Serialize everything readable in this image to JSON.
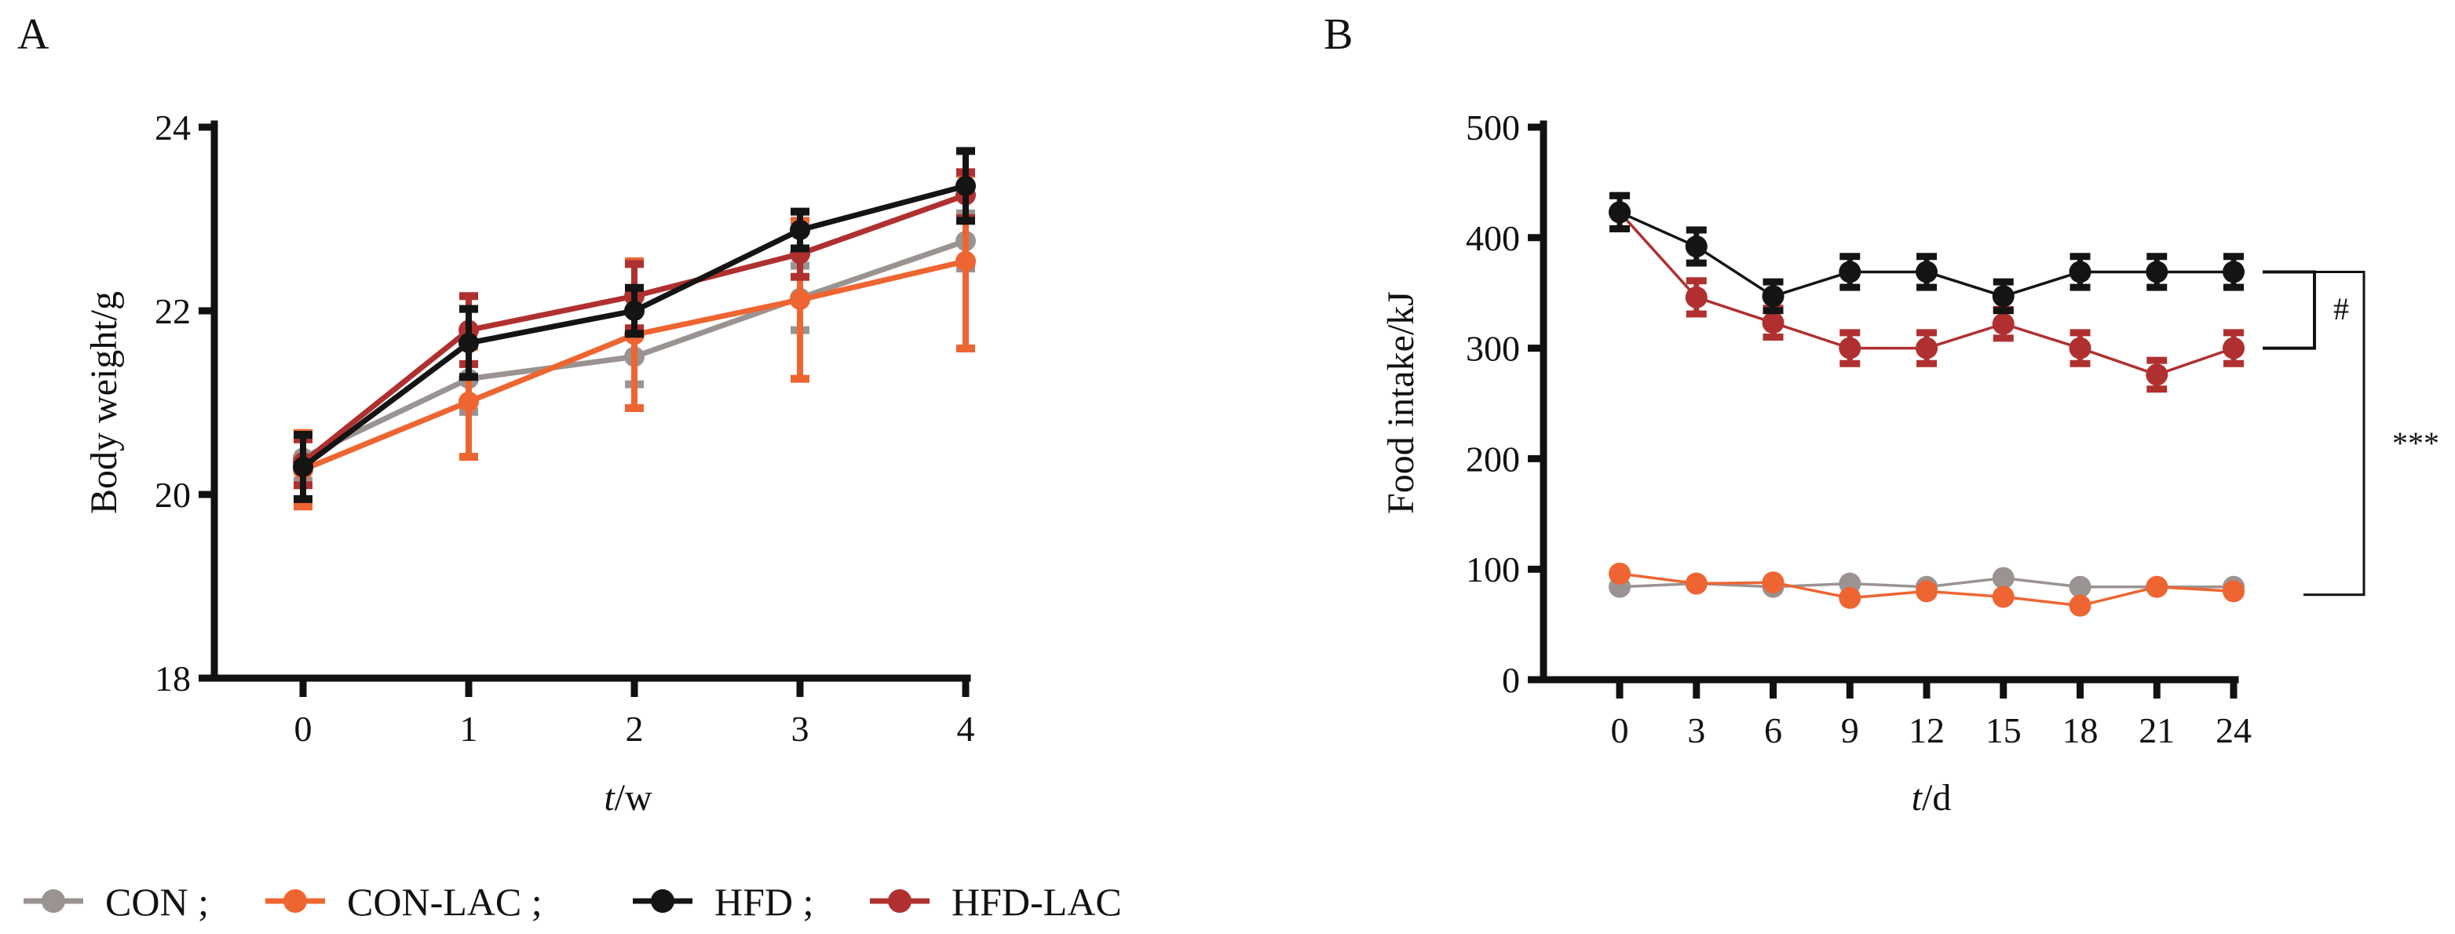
{
  "colors": {
    "CON": "#9a9391",
    "CON-LAC": "#ee6531",
    "HFD": "#141414",
    "HFD-LAC": "#b03030",
    "axis": "#111111"
  },
  "legend": {
    "items": [
      {
        "name": "CON",
        "label": "CON ;"
      },
      {
        "name": "CON-LAC",
        "label": "CON-LAC ;"
      },
      {
        "name": "HFD",
        "label": "HFD ;"
      },
      {
        "name": "HFD-LAC",
        "label": "HFD-LAC"
      }
    ],
    "placement": "bottom-left"
  },
  "chart_data": [
    {
      "panel": "A",
      "type": "line",
      "title": "",
      "xlabel_italic": "t",
      "xlabel_rest": "/w",
      "ylabel": "Body weight/g",
      "x": [
        0,
        1,
        2,
        3,
        4
      ],
      "xticks": [
        "0",
        "1",
        "2",
        "3",
        "4"
      ],
      "ylim": [
        18,
        24
      ],
      "yticks": [
        "18",
        "20",
        "22",
        "24"
      ],
      "ytick_values": [
        18,
        20,
        22,
        24
      ],
      "grid": false,
      "series": [
        {
          "name": "CON",
          "values": [
            20.4,
            21.26,
            21.5,
            22.14,
            22.76
          ],
          "errors": [
            0.25,
            0.36,
            0.3,
            0.35,
            0.3
          ]
        },
        {
          "name": "CON-LAC",
          "values": [
            20.27,
            21.01,
            21.74,
            22.12,
            22.54
          ],
          "errors": [
            0.4,
            0.6,
            0.8,
            0.86,
            0.95
          ]
        },
        {
          "name": "HFD",
          "values": [
            20.3,
            21.65,
            22.0,
            22.88,
            23.36
          ],
          "errors": [
            0.35,
            0.37,
            0.25,
            0.2,
            0.38
          ]
        },
        {
          "name": "HFD-LAC",
          "values": [
            20.35,
            21.79,
            22.16,
            22.62,
            23.26
          ],
          "errors": [
            0.25,
            0.37,
            0.35,
            0.25,
            0.25
          ]
        }
      ]
    },
    {
      "panel": "B",
      "type": "line",
      "title": "",
      "xlabel_italic": "t",
      "xlabel_rest": "/d",
      "ylabel": "Food intake/kJ",
      "x": [
        0,
        3,
        6,
        9,
        12,
        15,
        18,
        21,
        24
      ],
      "xticks": [
        "0",
        "3",
        "6",
        "9",
        "12",
        "15",
        "18",
        "21",
        "24"
      ],
      "ylim": [
        0,
        500
      ],
      "yticks": [
        "0",
        "100",
        "200",
        "300",
        "400",
        "500"
      ],
      "ytick_values": [
        0,
        100,
        200,
        300,
        400,
        500
      ],
      "grid": false,
      "series": [
        {
          "name": "CON",
          "values": [
            84,
            87,
            84,
            87,
            84,
            92,
            84,
            84,
            84
          ],
          "errors": [
            0,
            0,
            0,
            0,
            0,
            0,
            0,
            0,
            0
          ]
        },
        {
          "name": "CON-LAC",
          "values": [
            96,
            87,
            88,
            74,
            80,
            75,
            67,
            84,
            80
          ],
          "errors": [
            0,
            0,
            0,
            0,
            0,
            0,
            0,
            0,
            0
          ]
        },
        {
          "name": "HFD",
          "values": [
            423,
            392,
            347,
            369,
            369,
            347,
            369,
            369,
            369
          ],
          "errors": [
            15,
            15,
            13,
            14,
            14,
            13,
            14,
            14,
            14
          ]
        },
        {
          "name": "HFD-LAC",
          "values": [
            423,
            346,
            323,
            300,
            300,
            322,
            300,
            276,
            300
          ],
          "errors": [
            15,
            15,
            13,
            14,
            14,
            13,
            14,
            13,
            14
          ]
        }
      ],
      "annotations": [
        {
          "label": "#",
          "between": [
            "HFD",
            "HFD-LAC"
          ]
        },
        {
          "label": "***",
          "between": [
            "HFD",
            "CON"
          ]
        }
      ]
    }
  ]
}
